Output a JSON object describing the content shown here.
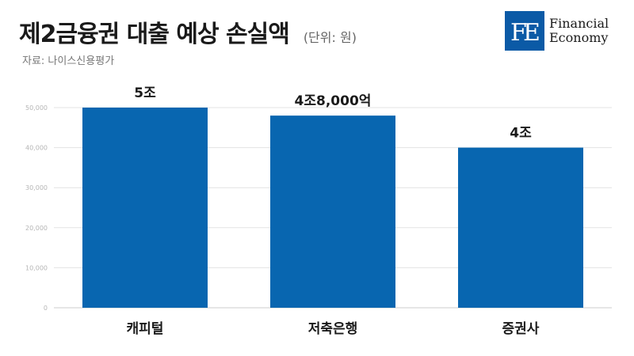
{
  "header": {
    "title": "제2금융권 대출 예상 손실액",
    "unit": "(단위: 원)",
    "source": "자료: 나이스신용평가"
  },
  "logo": {
    "mark": "FE",
    "line1": "Financial",
    "line2": "Economy",
    "color": "#0b5aa6"
  },
  "chart_data": {
    "type": "bar",
    "categories": [
      "캐피털",
      "저축은행",
      "증권사"
    ],
    "values": [
      50000,
      48000,
      40000
    ],
    "data_labels": [
      "5조",
      "4조8,000억",
      "4조"
    ],
    "ylim": [
      0,
      50000
    ],
    "yticks": [
      0,
      10000,
      20000,
      30000,
      40000,
      50000
    ],
    "ytick_labels": [
      "0",
      "10,000",
      "20,000",
      "30,000",
      "40,000",
      "50,000"
    ],
    "bar_color": "#0866b0",
    "grid": true,
    "xlabel": "",
    "ylabel": ""
  }
}
